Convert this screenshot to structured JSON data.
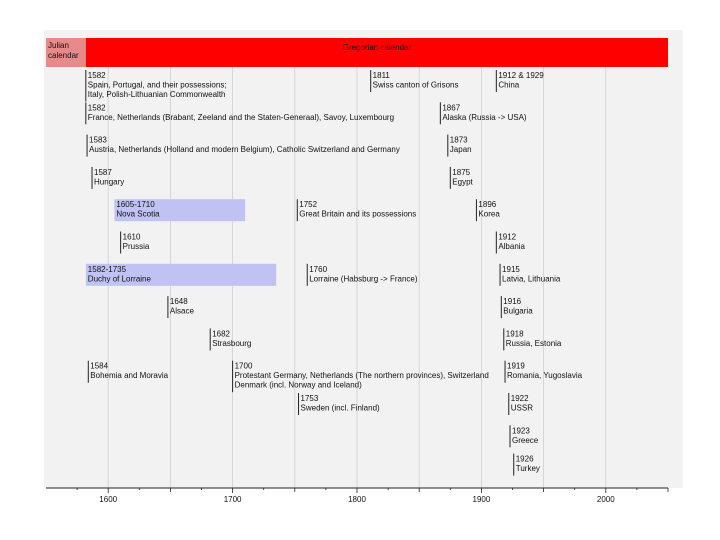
{
  "chart_data": {
    "type": "timeline",
    "title": "",
    "xlabel": "",
    "ylabel": "",
    "xlim": [
      1550,
      2050
    ],
    "x_ticks": [
      1600,
      1700,
      1800,
      1900,
      2000
    ],
    "grid": true,
    "bands": [
      {
        "label": "Julian calendar",
        "start": 1550,
        "end": 1582,
        "color": "#e88a8a",
        "label_align": "left"
      },
      {
        "label": "Gregorian calendar",
        "start": 1582,
        "end": 2050,
        "color": "#ff0000",
        "label_align": "center"
      }
    ],
    "events": [
      {
        "lines": [
          "1582",
          "Spain, Portugal,  and their possessions;",
          "Italy, Polish-Lithuanian Commonwealth"
        ],
        "year": 1582,
        "row": 1
      },
      {
        "lines": [
          "1811",
          "Swiss canton of Grisons"
        ],
        "year": 1811,
        "row": 1
      },
      {
        "lines": [
          "1912 & 1929",
          "China"
        ],
        "year": 1912,
        "row": 1
      },
      {
        "lines": [
          "1582",
          "France, Netherlands (Brabant, Zeeland and the Staten-Generaal), Savoy, Luxembourg"
        ],
        "year": 1582,
        "row": 2
      },
      {
        "lines": [
          "1867",
          "Alaska (Russia -> USA)"
        ],
        "year": 1867,
        "row": 2
      },
      {
        "lines": [
          "1583",
          "Austria, Netherlands (Holland and modern Belgium), Catholic Switzerland and Germany"
        ],
        "year": 1583,
        "row": 3
      },
      {
        "lines": [
          "1873",
          "Japan"
        ],
        "year": 1873,
        "row": 3
      },
      {
        "lines": [
          "1587",
          "Hungary"
        ],
        "year": 1587,
        "row": 4
      },
      {
        "lines": [
          "1875",
          "Egypt"
        ],
        "year": 1875,
        "row": 4
      },
      {
        "lines": [
          "1605-1710",
          "Nova Scotia"
        ],
        "start": 1605,
        "end": 1710,
        "row": 5
      },
      {
        "lines": [
          "1752",
          "Great Britain and its possessions"
        ],
        "year": 1752,
        "row": 5
      },
      {
        "lines": [
          "1896",
          "Korea"
        ],
        "year": 1896,
        "row": 5
      },
      {
        "lines": [
          "1610",
          "Prussia"
        ],
        "year": 1610,
        "row": 6
      },
      {
        "lines": [
          "1912",
          "Albania"
        ],
        "year": 1912,
        "row": 6
      },
      {
        "lines": [
          "1582-1735",
          "Duchy of Lorraine"
        ],
        "start": 1582,
        "end": 1735,
        "row": 7
      },
      {
        "lines": [
          "1760",
          "Lorraine (Habsburg -> France)"
        ],
        "year": 1760,
        "row": 7
      },
      {
        "lines": [
          "1915",
          "Latvia, Lithuania"
        ],
        "year": 1915,
        "row": 7
      },
      {
        "lines": [
          "1648",
          "Alsace"
        ],
        "year": 1648,
        "row": 8
      },
      {
        "lines": [
          "1916",
          "Bulgaria"
        ],
        "year": 1916,
        "row": 8
      },
      {
        "lines": [
          "1682",
          "Strasbourg"
        ],
        "year": 1682,
        "row": 9
      },
      {
        "lines": [
          "1918",
          "Russia, Estonia"
        ],
        "year": 1918,
        "row": 9
      },
      {
        "lines": [
          "1584",
          "Bohemia and Moravia"
        ],
        "year": 1584,
        "row": 10
      },
      {
        "lines": [
          "1700",
          "Protestant Germany, Netherlands (The northern provinces), Switzerland",
          "Denmark (incl. Norway and Iceland)"
        ],
        "year": 1700,
        "row": 10
      },
      {
        "lines": [
          "1919",
          "Romania, Yugoslavia"
        ],
        "year": 1919,
        "row": 10
      },
      {
        "lines": [
          "1753",
          "Sweden (incl. Finland)"
        ],
        "year": 1753,
        "row": 11
      },
      {
        "lines": [
          "1922",
          "USSR"
        ],
        "year": 1922,
        "row": 11
      },
      {
        "lines": [
          "1923",
          "Greece"
        ],
        "year": 1923,
        "row": 12
      },
      {
        "lines": [
          "1926",
          "Turkey"
        ],
        "year": 1926,
        "row": 13
      }
    ]
  }
}
